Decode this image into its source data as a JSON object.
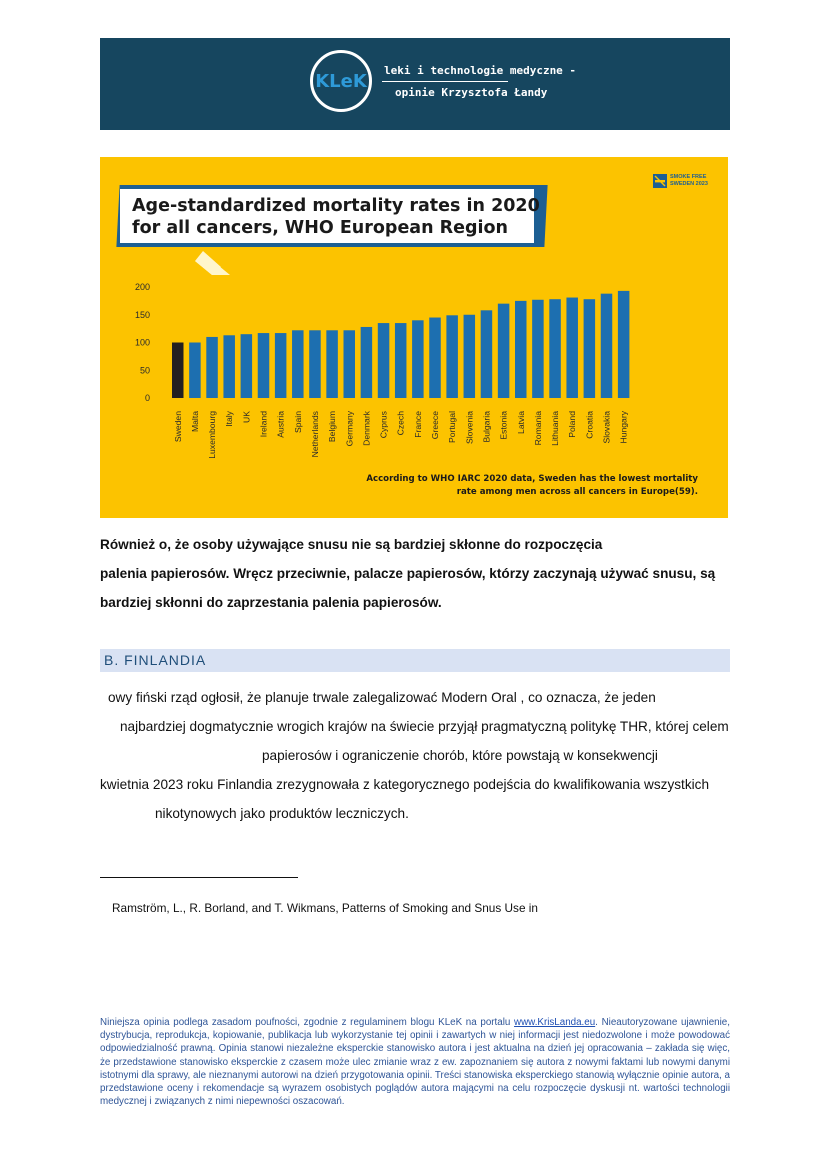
{
  "header": {
    "logo_text": "KLeK",
    "tagline_1": "leki i technologie medyczne -",
    "tagline_2": "opinie Krzysztofa Łandy",
    "bg_color": "#16465f"
  },
  "infographic": {
    "title_line_1": "Age-standardized mortality rates in 2020",
    "title_line_2": "for all cancers, WHO European Region",
    "badge_line_1": "SMOKE FREE",
    "badge_line_2": "SWEDEN 2023",
    "caption_line_1": "According to WHO IARC 2020 data, Sweden has the lowest mortality",
    "caption_line_2": "rate among men across all cancers in Europe(59).",
    "bg_color": "#fcc300",
    "bar_color": "#1d6fb0",
    "highlight_color": "#231f20"
  },
  "chart_data": {
    "type": "bar",
    "title": "Age-standardized mortality rates in 2020 for all cancers, WHO European Region",
    "categories": [
      "Sweden",
      "Malta",
      "Luxembourg",
      "Italy",
      "UK",
      "Ireland",
      "Austria",
      "Spain",
      "Netherlands",
      "Belgium",
      "Germany",
      "Denmark",
      "Cyprus",
      "Czech",
      "France",
      "Greece",
      "Portugal",
      "Slovenia",
      "Bulgaria",
      "Estonia",
      "Latvia",
      "Romania",
      "Lithuania",
      "Poland",
      "Croatia",
      "Slovakia",
      "Hungary"
    ],
    "values": [
      100,
      100,
      110,
      113,
      115,
      117,
      117,
      122,
      122,
      122,
      122,
      128,
      135,
      135,
      140,
      145,
      149,
      150,
      158,
      170,
      175,
      177,
      178,
      181,
      178,
      188,
      193
    ],
    "highlight": "Sweden",
    "yticks": [
      0,
      50,
      100,
      150,
      200
    ],
    "ylim": [
      0,
      210
    ],
    "xlabel": "",
    "ylabel": "",
    "grid": false
  },
  "paragraph_1": {
    "lines": [
      "Również                        o, że osoby używające snusu nie są bardziej skłonne do rozpoczęcia",
      "palenia papierosów. Wręcz przeciwnie, palacze papierosów, którzy zaczynają używać snusu, są",
      "bardziej skłonni do zaprzestania palenia papierosów."
    ]
  },
  "section": {
    "title": "B.  FINLANDIA"
  },
  "paragraph_2": {
    "lines": [
      "owy fiński rząd ogłosił, że planuje trwale zalegalizować Modern Oral           , co oznacza, że jeden",
      "najbardziej dogmatycznie wrogich krajów na świecie przyjął pragmatyczną politykę THR, której celem",
      "papierosów i ograniczenie chorób, które powstają w konsekwencji",
      "kwietnia 2023 roku Finlandia zrezygnowała z kategorycznego podejścia do kwalifikowania wszystkich",
      "nikotynowych jako produktów leczniczych."
    ]
  },
  "footnote": {
    "text": "Ramström, L., R. Borland, and T. Wikmans, Patterns of Smoking and Snus Use in"
  },
  "disclaimer": {
    "before_link": "Niniejsza opinia podlega zasadom poufności, zgodnie z regulaminem blogu KLeK na portalu ",
    "link": "www.KrisLanda.eu",
    "after_link": ". Nieautoryzowane ujawnienie, dystrybucja, reprodukcja, kopiowanie, publikacja lub wykorzystanie tej opinii i zawartych w niej informacji jest niedozwolone i może powodować odpowiedzialność prawną. Opinia stanowi niezależne eksperckie stanowisko autora i jest aktualna na dzień jej opracowania – zakłada się więc, że przedstawione stanowisko eksperckie z czasem może ulec zmianie wraz z ew. zapoznaniem się autora z nowymi faktami lub nowymi danymi istotnymi dla sprawy, ale nieznanymi autorowi na dzień przygotowania opinii. Treści stanowiska eksperckiego stanowią wyłącznie opinie autora, a przedstawione oceny i rekomendacje są wyrazem osobistych poglądów autora mającymi na celu rozpoczęcie dyskusji nt. wartości technologii medycznej i związanych z nimi niepewności oszacowań."
  }
}
